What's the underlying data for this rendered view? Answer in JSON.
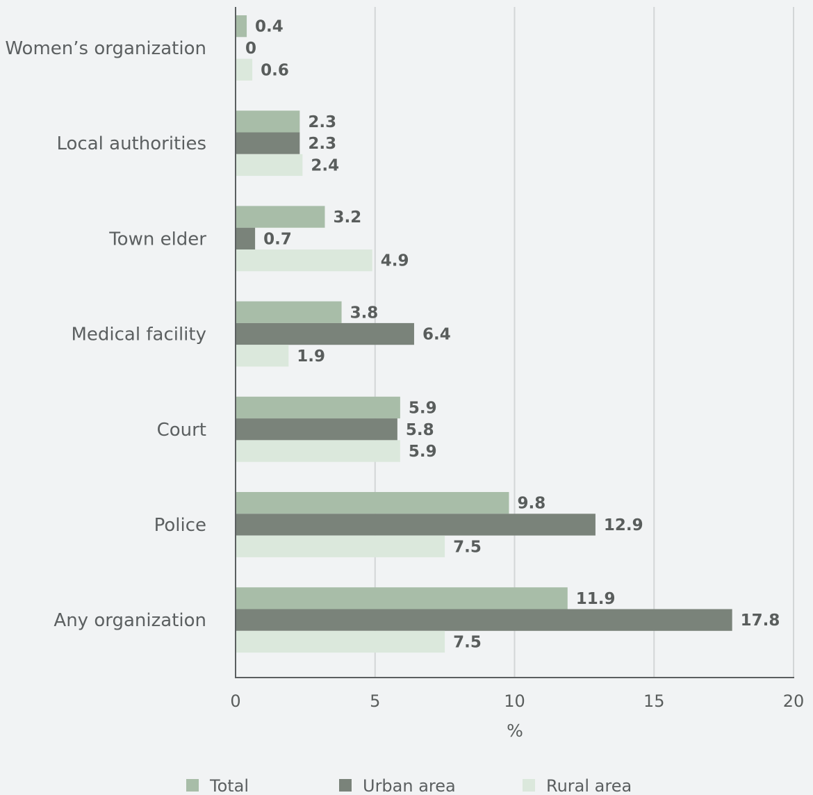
{
  "chart_data": {
    "type": "bar",
    "orientation": "horizontal",
    "categories": [
      "Women’s organization",
      "Local authorities",
      "Town elder",
      "Medical facility",
      "Court",
      "Police",
      "Any organization"
    ],
    "series": [
      {
        "name": "Total",
        "color": "#a8bda8",
        "values": [
          0.4,
          2.3,
          3.2,
          3.8,
          5.9,
          9.8,
          11.9
        ]
      },
      {
        "name": "Urban area",
        "color": "#7a837a",
        "values": [
          0,
          2.3,
          0.7,
          6.4,
          5.8,
          12.9,
          17.8
        ]
      },
      {
        "name": "Rural area",
        "color": "#dbe8dc",
        "values": [
          0.6,
          2.4,
          4.9,
          1.9,
          5.9,
          7.5,
          7.5
        ]
      }
    ],
    "xlabel": "%",
    "xlim": [
      0,
      20
    ],
    "xticks": [
      0,
      5,
      10,
      15,
      20
    ],
    "grid": "vertical",
    "legend_position": "bottom"
  }
}
